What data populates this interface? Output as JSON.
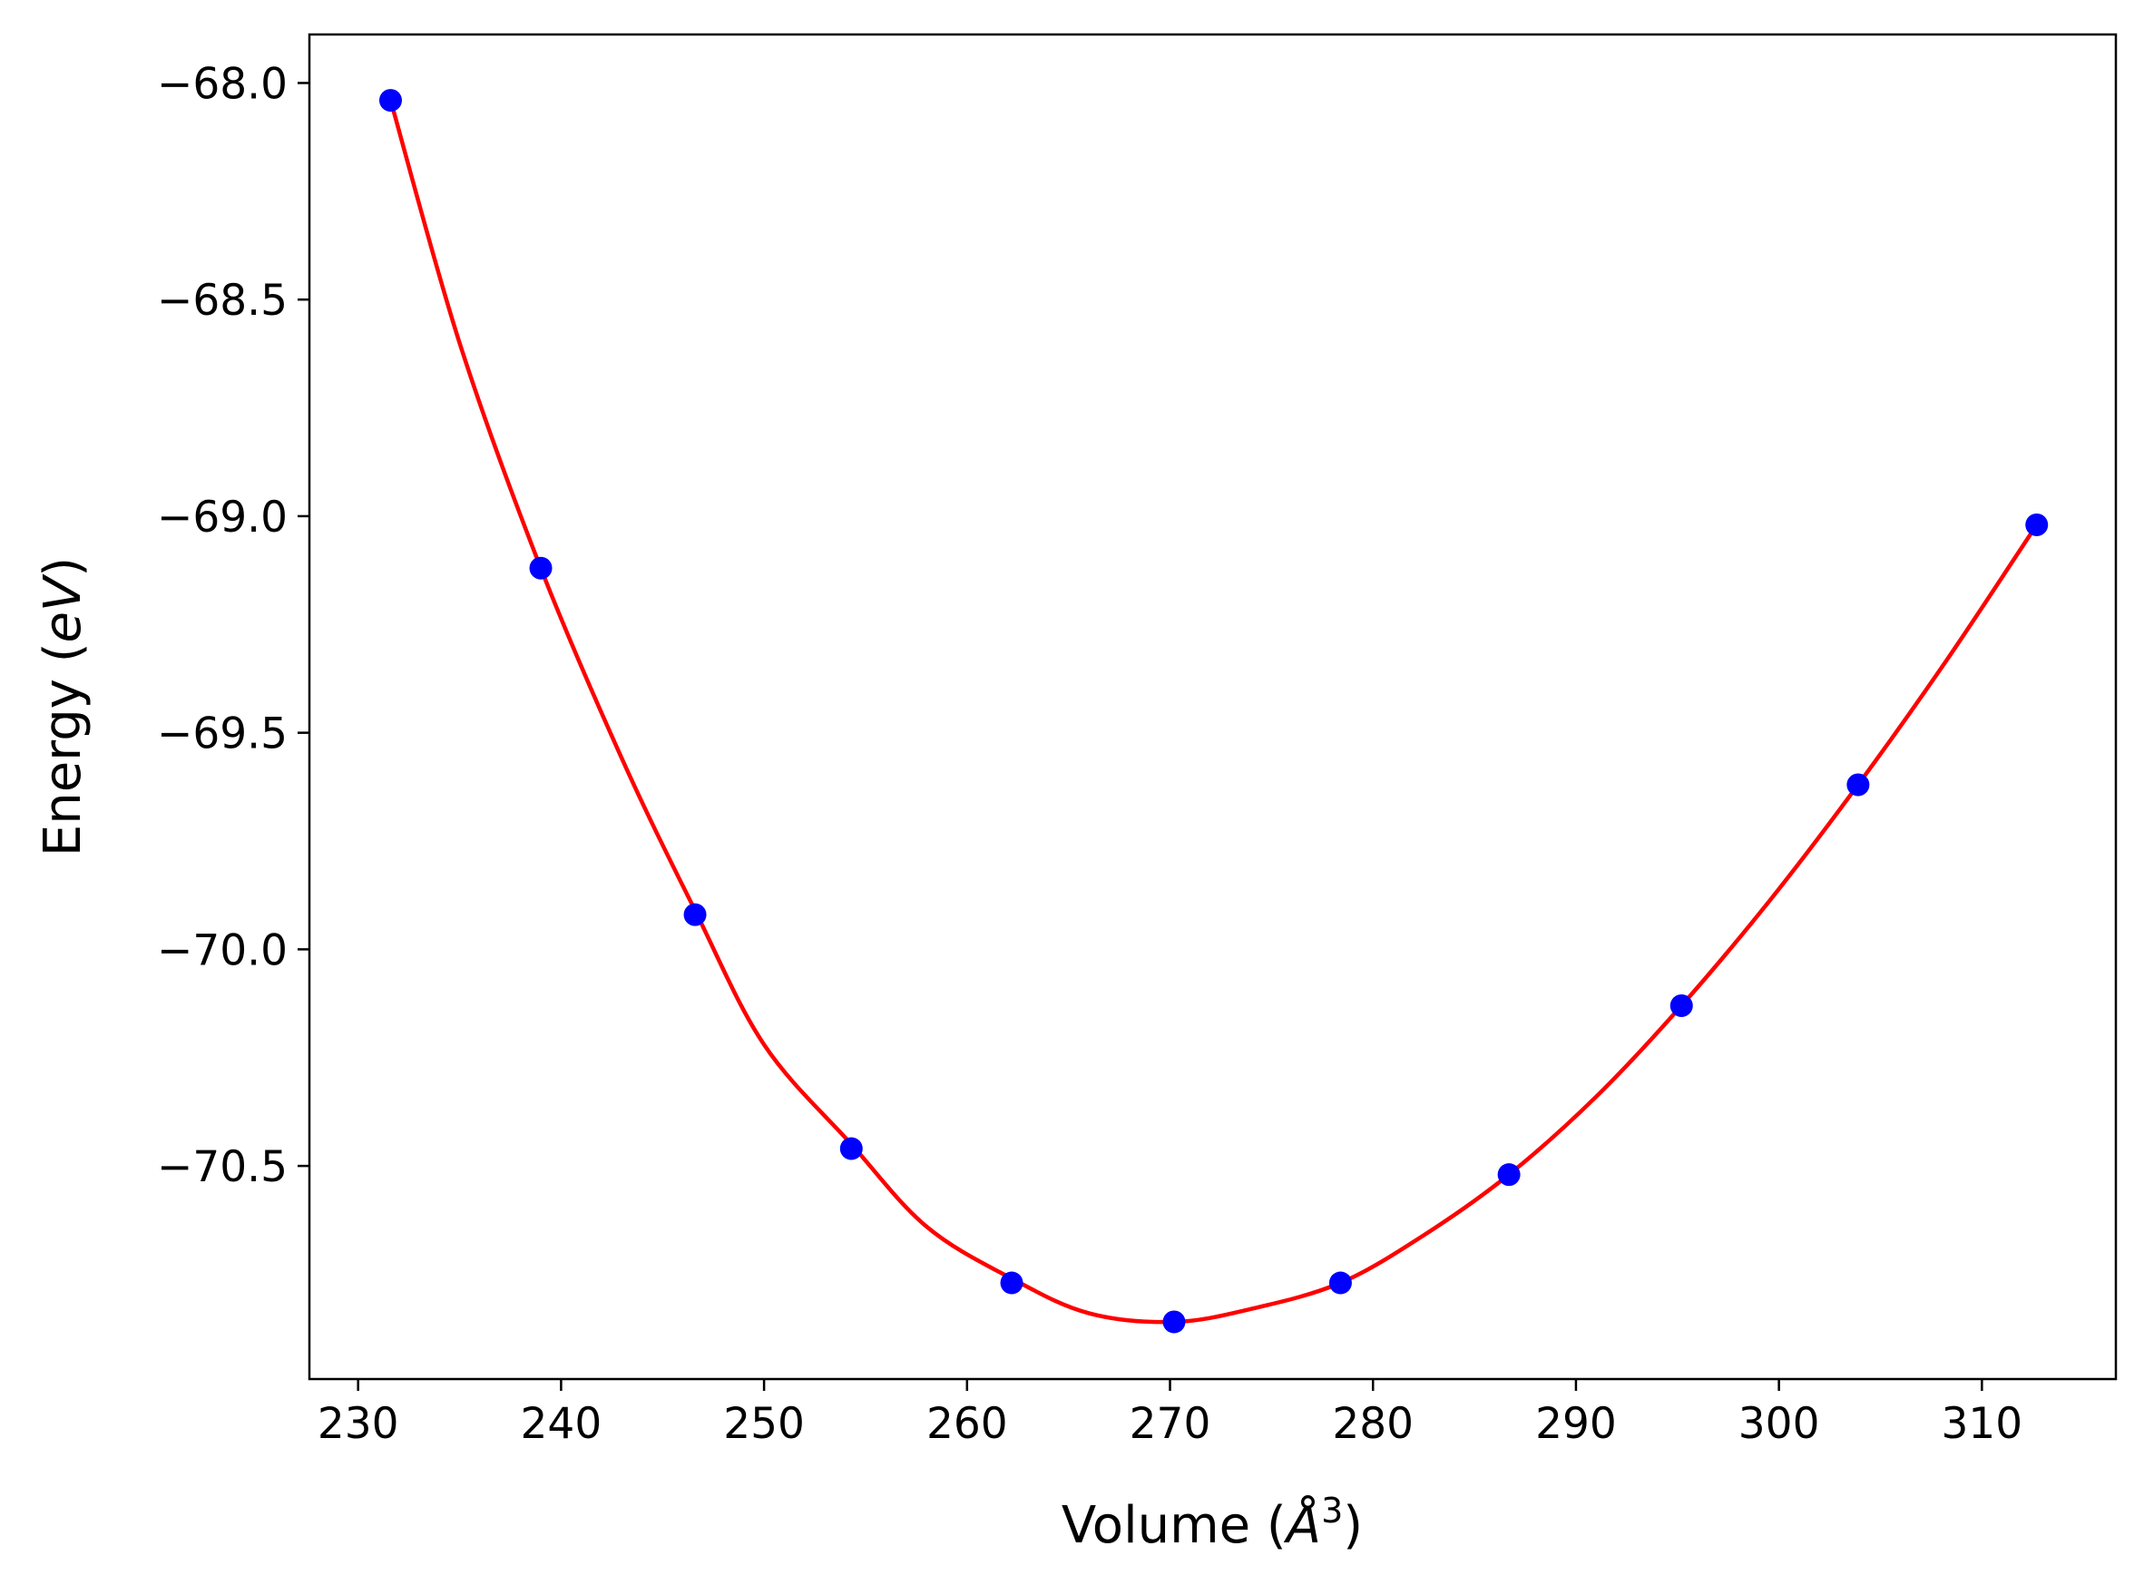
{
  "chart_data": {
    "type": "scatter",
    "title": "",
    "xlabel": "Volume (",
    "xlabel_math": "Å",
    "xlabel_sup": "3",
    "xlabel_close": ")",
    "ylabel": "Energy (",
    "ylabel_math": "eV",
    "ylabel_close": ")",
    "xlim": [
      227.6,
      316.6
    ],
    "ylim": [
      -70.992,
      -67.888
    ],
    "xticks": [
      230,
      240,
      250,
      260,
      270,
      280,
      290,
      300,
      310
    ],
    "xtick_labels": [
      "230",
      "240",
      "250",
      "260",
      "270",
      "280",
      "290",
      "300",
      "310"
    ],
    "yticks": [
      -68.0,
      -68.5,
      -69.0,
      -69.5,
      -70.0,
      -70.5
    ],
    "ytick_labels": [
      "−68.0",
      "−68.5",
      "−69.0",
      "−69.5",
      "−70.0",
      "−70.5"
    ],
    "grid": false,
    "legend": "none",
    "series": [
      {
        "kind": "points",
        "color": "#0000ff",
        "x": [
          231.6,
          239.0,
          246.6,
          254.3,
          262.2,
          270.2,
          278.4,
          286.7,
          295.2,
          303.9,
          312.7
        ],
        "y": [
          -68.04,
          -69.12,
          -69.92,
          -70.46,
          -70.77,
          -70.86,
          -70.77,
          -70.52,
          -70.13,
          -69.62,
          -69.02
        ]
      },
      {
        "kind": "fit-curve",
        "color": "#ff0000",
        "x": [
          231.6,
          235.0,
          239.0,
          243.0,
          246.6,
          250.0,
          254.3,
          258.0,
          262.2,
          266.0,
          270.2,
          274.0,
          278.4,
          282.5,
          286.7,
          291.0,
          295.2,
          299.5,
          303.9,
          308.3,
          312.7
        ],
        "y": [
          -68.04,
          -68.6,
          -69.12,
          -69.56,
          -69.91,
          -70.22,
          -70.45,
          -70.64,
          -70.76,
          -70.84,
          -70.86,
          -70.83,
          -70.77,
          -70.66,
          -70.52,
          -70.34,
          -70.13,
          -69.89,
          -69.62,
          -69.33,
          -69.02
        ]
      }
    ]
  }
}
